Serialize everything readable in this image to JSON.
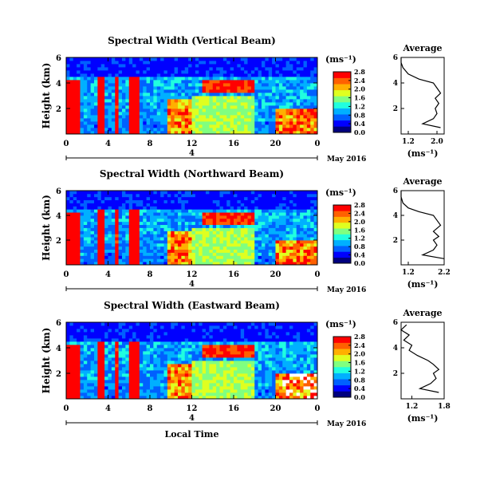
{
  "common": {
    "xlabel": "Local Time",
    "ylabel": "Height (km)",
    "date_label": "May 2016",
    "day_marker": "4",
    "unit_label": "(ms⁻¹)",
    "profile_title": "Average",
    "profile_xlabel": "(ms⁻¹)",
    "colormap": [
      "#00007f",
      "#0000ff",
      "#0060ff",
      "#00b0ff",
      "#20ffdf",
      "#80ff80",
      "#dfff20",
      "#ffb000",
      "#ff6000",
      "#ff0000"
    ]
  },
  "chart_data": [
    {
      "type": "heatmap",
      "title": "Spectral Width (Vertical Beam)",
      "x_ticks": [
        "0",
        "4",
        "8",
        "12",
        "16",
        "20",
        "0"
      ],
      "y_ticks": [
        "2",
        "4",
        "6"
      ],
      "ylim": [
        0,
        6
      ],
      "xlim": [
        0,
        24
      ],
      "colorbar": {
        "ticks": [
          "0.0",
          "0.4",
          "0.8",
          "1.2",
          "1.6",
          "2.0",
          "2.4",
          "2.8"
        ],
        "range": [
          0,
          2.8
        ]
      },
      "profile": {
        "xlim": [
          1.0,
          2.2
        ],
        "x_ticks": [
          "1.2",
          "2.0"
        ],
        "y_ticks": [
          "2",
          "4",
          "6"
        ],
        "points": [
          [
            2.1,
            0.5
          ],
          [
            1.6,
            0.8
          ],
          [
            1.9,
            1.2
          ],
          [
            2.0,
            1.6
          ],
          [
            1.95,
            2.0
          ],
          [
            2.05,
            2.4
          ],
          [
            1.95,
            2.8
          ],
          [
            2.1,
            3.2
          ],
          [
            2.0,
            3.6
          ],
          [
            1.9,
            4.0
          ],
          [
            1.5,
            4.3
          ],
          [
            1.2,
            4.7
          ],
          [
            1.05,
            5.2
          ],
          [
            1.0,
            5.6
          ],
          [
            1.0,
            6.0
          ]
        ]
      }
    },
    {
      "type": "heatmap",
      "title": "Spectral Width (Northward Beam)",
      "x_ticks": [
        "0",
        "4",
        "8",
        "12",
        "16",
        "20",
        "0"
      ],
      "y_ticks": [
        "2",
        "4",
        "6"
      ],
      "ylim": [
        0,
        6
      ],
      "xlim": [
        0,
        24
      ],
      "colorbar": {
        "ticks": [
          "0.0",
          "0.4",
          "0.8",
          "1.2",
          "1.6",
          "2.0",
          "2.4",
          "2.8"
        ],
        "range": [
          0,
          2.8
        ]
      },
      "profile": {
        "xlim": [
          1.0,
          2.2
        ],
        "x_ticks": [
          "1.2",
          "2.2"
        ],
        "y_ticks": [
          "2",
          "4",
          "6"
        ],
        "points": [
          [
            2.2,
            0.5
          ],
          [
            1.6,
            0.8
          ],
          [
            1.9,
            1.2
          ],
          [
            2.0,
            1.6
          ],
          [
            1.9,
            2.0
          ],
          [
            2.05,
            2.3
          ],
          [
            1.9,
            2.7
          ],
          [
            2.1,
            3.2
          ],
          [
            2.0,
            3.6
          ],
          [
            1.9,
            4.0
          ],
          [
            1.5,
            4.3
          ],
          [
            1.2,
            4.6
          ],
          [
            1.05,
            5.0
          ],
          [
            1.0,
            5.5
          ],
          [
            1.0,
            6.0
          ]
        ]
      }
    },
    {
      "type": "heatmap",
      "title": "Spectral Width (Eastward Beam)",
      "x_ticks": [
        "0",
        "4",
        "8",
        "12",
        "16",
        "20",
        "0"
      ],
      "y_ticks": [
        "2",
        "4",
        "6"
      ],
      "ylim": [
        0,
        6
      ],
      "xlim": [
        0,
        24
      ],
      "colorbar": {
        "ticks": [
          "0.0",
          "0.4",
          "0.8",
          "1.2",
          "1.6",
          "2.0",
          "2.4",
          "2.8"
        ],
        "range": [
          0,
          2.8
        ]
      },
      "profile": {
        "xlim": [
          1.0,
          1.8
        ],
        "x_ticks": [
          "1.2",
          "1.8"
        ],
        "y_ticks": [
          "2",
          "4",
          "6"
        ],
        "points": [
          [
            1.7,
            0.5
          ],
          [
            1.35,
            0.8
          ],
          [
            1.55,
            1.2
          ],
          [
            1.65,
            1.6
          ],
          [
            1.6,
            2.0
          ],
          [
            1.7,
            2.3
          ],
          [
            1.6,
            2.7
          ],
          [
            1.5,
            3.0
          ],
          [
            1.3,
            3.4
          ],
          [
            1.15,
            3.8
          ],
          [
            1.2,
            4.2
          ],
          [
            1.05,
            4.6
          ],
          [
            1.15,
            5.0
          ],
          [
            1.0,
            5.4
          ],
          [
            1.1,
            5.8
          ]
        ]
      }
    }
  ]
}
